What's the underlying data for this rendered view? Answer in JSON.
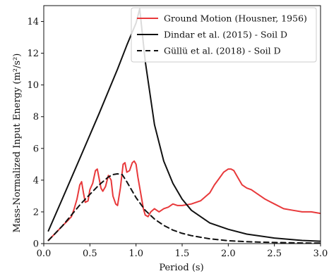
{
  "chart_data": {
    "type": "line",
    "xlabel": "Period (s)",
    "ylabel": "Mass-Normalized Input Energy",
    "ylabel_unit": "(m²/s²)",
    "xlim": [
      0,
      3.0
    ],
    "ylim": [
      0,
      15
    ],
    "xticks": [
      0.0,
      0.5,
      1.0,
      1.5,
      2.0,
      2.5,
      3.0
    ],
    "xtick_labels": [
      "0.0",
      "0.5",
      "1.0",
      "1.5",
      "2.0",
      "2.5",
      "3.0"
    ],
    "yticks": [
      0,
      2,
      4,
      6,
      8,
      10,
      12,
      14
    ],
    "ytick_labels": [
      "0",
      "2",
      "4",
      "6",
      "8",
      "10",
      "12",
      "14"
    ],
    "grid": false,
    "legend_position": "top-right",
    "series": [
      {
        "name": "Ground Motion (Housner, 1956)",
        "color": "#e8393b",
        "dash": "solid",
        "x": [
          0.05,
          0.1,
          0.15,
          0.2,
          0.25,
          0.3,
          0.33,
          0.36,
          0.39,
          0.41,
          0.43,
          0.45,
          0.48,
          0.5,
          0.53,
          0.56,
          0.58,
          0.6,
          0.62,
          0.64,
          0.67,
          0.7,
          0.73,
          0.75,
          0.78,
          0.8,
          0.83,
          0.86,
          0.88,
          0.9,
          0.93,
          0.96,
          0.98,
          1.0,
          1.02,
          1.05,
          1.08,
          1.1,
          1.13,
          1.16,
          1.2,
          1.25,
          1.3,
          1.35,
          1.4,
          1.45,
          1.5,
          1.6,
          1.7,
          1.8,
          1.85,
          1.9,
          1.95,
          2.0,
          2.03,
          2.06,
          2.1,
          2.15,
          2.2,
          2.25,
          2.3,
          2.4,
          2.5,
          2.6,
          2.7,
          2.8,
          2.9,
          3.0
        ],
        "y": [
          0.2,
          0.5,
          0.8,
          1.1,
          1.4,
          1.7,
          2.2,
          2.8,
          3.7,
          3.9,
          3.2,
          2.6,
          2.7,
          3.4,
          3.8,
          4.6,
          4.7,
          4.1,
          3.5,
          3.3,
          3.6,
          4.3,
          4.0,
          3.0,
          2.5,
          2.4,
          3.5,
          5.0,
          5.1,
          4.5,
          4.6,
          5.1,
          5.2,
          5.0,
          4.2,
          3.2,
          2.2,
          1.8,
          1.7,
          2.0,
          2.2,
          2.0,
          2.2,
          2.3,
          2.5,
          2.4,
          2.4,
          2.5,
          2.7,
          3.2,
          3.7,
          4.1,
          4.5,
          4.7,
          4.7,
          4.6,
          4.2,
          3.7,
          3.5,
          3.4,
          3.2,
          2.8,
          2.5,
          2.2,
          2.1,
          2.0,
          2.0,
          1.9
        ]
      },
      {
        "name": "Dindar et al. (2015) - Soil D",
        "color": "#111111",
        "dash": "solid",
        "x": [
          0.05,
          0.2,
          0.4,
          0.6,
          0.8,
          0.9,
          1.0,
          1.04,
          1.1,
          1.2,
          1.3,
          1.4,
          1.5,
          1.6,
          1.8,
          2.0,
          2.2,
          2.5,
          2.8,
          3.0
        ],
        "y": [
          0.8,
          2.8,
          5.5,
          8.2,
          11.0,
          12.5,
          13.9,
          14.8,
          11.5,
          7.5,
          5.2,
          3.8,
          2.8,
          2.1,
          1.3,
          0.9,
          0.6,
          0.35,
          0.2,
          0.15
        ]
      },
      {
        "name": "Güllü et al. (2018) - Soil D",
        "color": "#111111",
        "dash": "dashed",
        "x": [
          0.05,
          0.1,
          0.2,
          0.3,
          0.4,
          0.5,
          0.6,
          0.7,
          0.75,
          0.8,
          0.85,
          0.9,
          1.0,
          1.1,
          1.2,
          1.3,
          1.4,
          1.5,
          1.6,
          1.8,
          2.0,
          2.2,
          2.5,
          2.8,
          3.0
        ],
        "y": [
          0.2,
          0.5,
          1.1,
          1.8,
          2.5,
          3.1,
          3.7,
          4.2,
          4.35,
          4.4,
          4.35,
          3.9,
          2.9,
          2.1,
          1.55,
          1.15,
          0.85,
          0.65,
          0.5,
          0.3,
          0.18,
          0.12,
          0.07,
          0.04,
          0.03
        ]
      }
    ]
  }
}
